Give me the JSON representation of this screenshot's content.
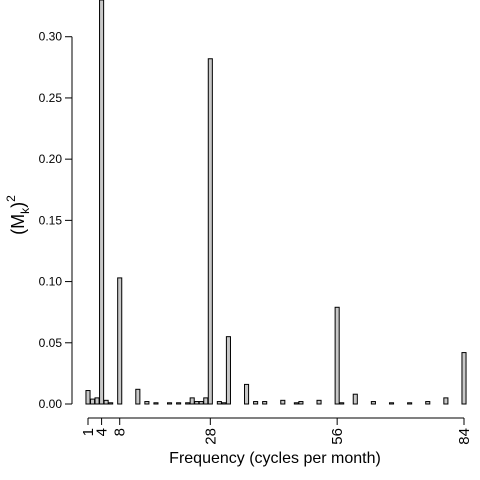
{
  "chart_data": {
    "type": "bar",
    "xlabel": "Frequency (cycles per month)",
    "ylabel": {
      "base": "(M",
      "sub": "k",
      "close": ")",
      "sup": "2"
    },
    "x": [
      1,
      2,
      3,
      4,
      5,
      6,
      8,
      12,
      14,
      16,
      19,
      21,
      23,
      24,
      25,
      26,
      27,
      28,
      30,
      31,
      32,
      36,
      38,
      40,
      44,
      47,
      48,
      52,
      56,
      57,
      60,
      64,
      68,
      72,
      76,
      80,
      84
    ],
    "values": [
      0.011,
      0.004,
      0.005,
      0.33,
      0.003,
      0.001,
      0.103,
      0.012,
      0.002,
      0.001,
      0.001,
      0.001,
      0.001,
      0.005,
      0.002,
      0.002,
      0.005,
      0.282,
      0.002,
      0.001,
      0.055,
      0.016,
      0.002,
      0.002,
      0.003,
      0.001,
      0.002,
      0.003,
      0.079,
      0.001,
      0.008,
      0.002,
      0.001,
      0.001,
      0.002,
      0.005,
      0.042
    ],
    "color": "#c8c8c8",
    "xlim": [
      1,
      84
    ],
    "xticks": [
      1,
      4,
      8,
      28,
      56,
      84
    ],
    "ylim": [
      0,
      0.33
    ],
    "yticks": [
      {
        "value": 0,
        "label": "0.00"
      },
      0.05,
      {
        "value": 0.1,
        "label": "0.10"
      },
      0.15,
      {
        "value": 0.2,
        "label": "0.20"
      },
      0.25,
      {
        "value": 0.3,
        "label": "0.30"
      }
    ]
  }
}
